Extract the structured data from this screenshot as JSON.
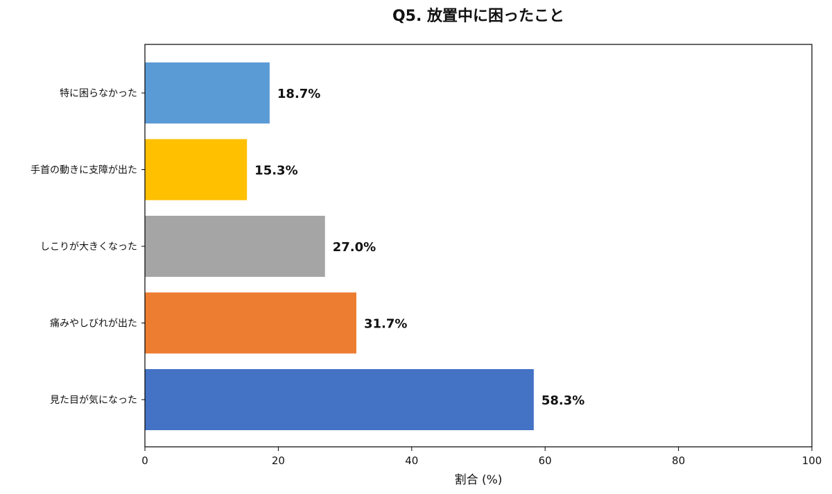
{
  "chart_data": {
    "type": "bar",
    "orientation": "horizontal",
    "title": "Q5. 放置中に困ったこと",
    "xlabel": "割合 (%)",
    "ylabel": "",
    "xlim": [
      0,
      100
    ],
    "x_ticks": [
      0,
      20,
      40,
      60,
      80,
      100
    ],
    "grid": false,
    "categories": [
      "特に困らなかった",
      "手首の動きに支障が出た",
      "しこりが大きくなった",
      "痛みやしびれが出た",
      "見た目が気になった"
    ],
    "values": [
      18.7,
      15.3,
      27.0,
      31.7,
      58.3
    ],
    "data_labels": [
      "18.7%",
      "15.3%",
      "27.0%",
      "31.7%",
      "58.3%"
    ],
    "colors": [
      "#5b9bd5",
      "#ffc000",
      "#a5a5a5",
      "#ed7d31",
      "#4472c4"
    ]
  }
}
